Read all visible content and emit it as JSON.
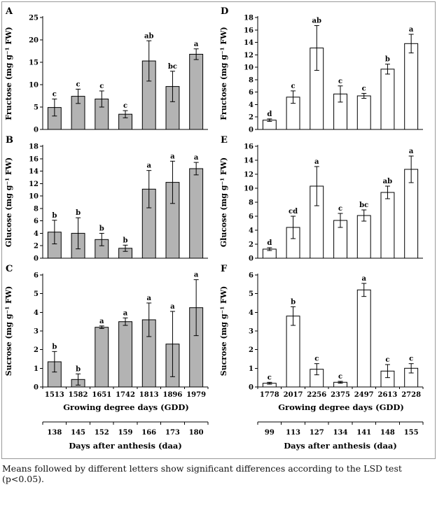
{
  "caption": "Means followed by different letters show significant differences according to the LSD test (p&lt;0.05).",
  "caption_plain": "Means followed by different letters show significant differences according to the LSD test (p<0.05).",
  "daa_axes": {
    "left": {
      "values": [
        "138",
        "145",
        "152",
        "159",
        "166",
        "173",
        "180"
      ],
      "label": "Days after anthesis (daa)"
    },
    "right": {
      "values": [
        "99",
        "113",
        "127",
        "134",
        "141",
        "148",
        "155"
      ],
      "label": "Days after anthesis (daa)"
    }
  },
  "chart_data": [
    {
      "type": "bar",
      "panel": "A",
      "ylabel": "Fructose (mg g⁻¹ FW)",
      "xlabel": "Growing degree days (GDD)",
      "categories": [
        "1513",
        "1582",
        "1651",
        "1742",
        "1813",
        "1896",
        "1979"
      ],
      "values": [
        4.9,
        7.4,
        6.8,
        3.4,
        15.3,
        9.6,
        16.8
      ],
      "errors": [
        1.9,
        1.6,
        1.8,
        0.8,
        4.5,
        3.4,
        1.2
      ],
      "letters": [
        "c",
        "c",
        "c",
        "c",
        "ab",
        "bc",
        "a"
      ],
      "ylim": [
        0,
        25
      ],
      "ytick": 5,
      "bar_color": "#b3b3b3",
      "show_x_labels": false,
      "grid": false,
      "legend": "none"
    },
    {
      "type": "bar",
      "panel": "B",
      "ylabel": "Glucose (mg g⁻¹ FW)",
      "xlabel": "Growing degree days (GDD)",
      "categories": [
        "1513",
        "1582",
        "1651",
        "1742",
        "1813",
        "1896",
        "1979"
      ],
      "values": [
        4.2,
        4.0,
        3.0,
        1.6,
        11.1,
        12.2,
        14.4
      ],
      "errors": [
        1.9,
        2.5,
        1.0,
        0.5,
        3.0,
        3.4,
        1.0
      ],
      "letters": [
        "b",
        "b",
        "b",
        "b",
        "a",
        "a",
        "a"
      ],
      "ylim": [
        0,
        18
      ],
      "ytick": 2,
      "bar_color": "#b3b3b3",
      "show_x_labels": false,
      "grid": false,
      "legend": "none"
    },
    {
      "type": "bar",
      "panel": "C",
      "ylabel": "Sucrose (mg g⁻¹ FW)",
      "xlabel": "Growing degree days (GDD)",
      "categories": [
        "1513",
        "1582",
        "1651",
        "1742",
        "1813",
        "1896",
        "1979"
      ],
      "values": [
        1.35,
        0.4,
        3.2,
        3.5,
        3.6,
        2.3,
        4.25
      ],
      "errors": [
        0.55,
        0.3,
        0.07,
        0.2,
        0.9,
        1.75,
        1.5
      ],
      "letters": [
        "b",
        "b",
        "a",
        "a",
        "a",
        "a",
        "a"
      ],
      "ylim": [
        0,
        6
      ],
      "ytick": 1,
      "bar_color": "#b3b3b3",
      "show_x_labels": true,
      "grid": false,
      "legend": "none"
    },
    {
      "type": "bar",
      "panel": "D",
      "ylabel": "Fructose (mg g⁻¹ FW)",
      "xlabel": "Growing degree days (GDD)",
      "categories": [
        "1778",
        "2017",
        "2256",
        "2375",
        "2497",
        "2613",
        "2728"
      ],
      "values": [
        1.5,
        5.2,
        13.1,
        5.7,
        5.4,
        9.7,
        13.8
      ],
      "errors": [
        0.2,
        1.0,
        3.6,
        1.3,
        0.4,
        0.8,
        1.5
      ],
      "letters": [
        "d",
        "c",
        "ab",
        "c",
        "c",
        "b",
        "a"
      ],
      "ylim": [
        0,
        18
      ],
      "ytick": 2,
      "bar_color": "#ffffff",
      "show_x_labels": false,
      "grid": false,
      "legend": "none"
    },
    {
      "type": "bar",
      "panel": "E",
      "ylabel": "Glucose (mg g⁻¹ FW)",
      "xlabel": "Growing degree days (GDD)",
      "categories": [
        "1778",
        "2017",
        "2256",
        "2375",
        "2497",
        "2613",
        "2728"
      ],
      "values": [
        1.3,
        4.4,
        10.3,
        5.4,
        6.1,
        9.4,
        12.7
      ],
      "errors": [
        0.2,
        1.6,
        2.8,
        1.0,
        0.8,
        0.9,
        1.9
      ],
      "letters": [
        "d",
        "cd",
        "a",
        "c",
        "bc",
        "ab",
        "a"
      ],
      "ylim": [
        0,
        16
      ],
      "ytick": 2,
      "bar_color": "#ffffff",
      "show_x_labels": false,
      "grid": false,
      "legend": "none"
    },
    {
      "type": "bar",
      "panel": "F",
      "ylabel": "Sucrose (mg g⁻¹ FW)",
      "xlabel": "Growing degree days (GDD)",
      "categories": [
        "1778",
        "2017",
        "2256",
        "2375",
        "2497",
        "2613",
        "2728"
      ],
      "values": [
        0.2,
        3.8,
        0.95,
        0.25,
        5.2,
        0.85,
        1.0
      ],
      "errors": [
        0.05,
        0.5,
        0.3,
        0.05,
        0.35,
        0.35,
        0.25
      ],
      "letters": [
        "c",
        "b",
        "c",
        "c",
        "a",
        "c",
        "c"
      ],
      "ylim": [
        0,
        6
      ],
      "ytick": 1,
      "bar_color": "#ffffff",
      "show_x_labels": true,
      "grid": false,
      "legend": "none"
    }
  ]
}
